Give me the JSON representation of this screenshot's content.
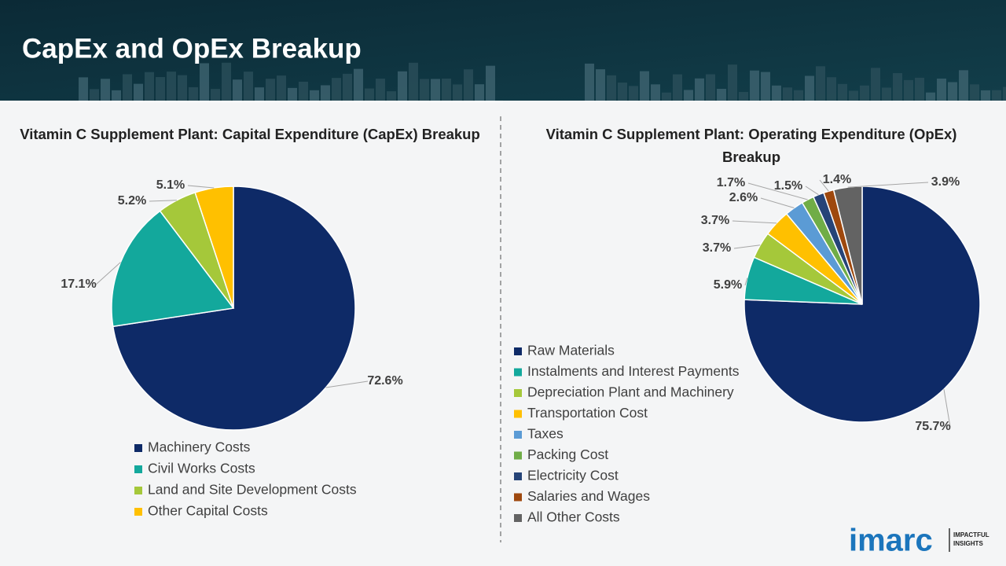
{
  "title": "CapEx and OpEx Breakup",
  "chart_data": [
    {
      "type": "pie",
      "title": "Vitamin C Supplement Plant: Capital Expenditure (CapEx) Breakup",
      "categories": [
        "Machinery Costs",
        "Civil Works Costs",
        "Land and Site Development Costs",
        "Other Capital Costs"
      ],
      "values": [
        72.6,
        17.1,
        5.2,
        5.1
      ],
      "value_labels": [
        "72.6%",
        "17.1%",
        "5.2%",
        "5.1%"
      ],
      "colors": [
        "#0e2a67",
        "#13a89c",
        "#a5c83a",
        "#ffc000"
      ]
    },
    {
      "type": "pie",
      "title": "Vitamin C Supplement Plant: Operating Expenditure (OpEx) Breakup",
      "categories": [
        "Raw Materials",
        "Instalments and Interest Payments",
        "Depreciation Plant and Machinery",
        "Transportation Cost",
        "Taxes",
        "Packing Cost",
        "Electricity Cost",
        "Salaries and Wages",
        "All Other Costs"
      ],
      "values": [
        75.7,
        5.9,
        3.7,
        3.7,
        2.6,
        1.7,
        1.5,
        1.4,
        3.9
      ],
      "value_labels": [
        "75.7%",
        "5.9%",
        "3.7%",
        "3.7%",
        "2.6%",
        "1.7%",
        "1.5%",
        "1.4%",
        "3.9%"
      ],
      "colors": [
        "#0e2a67",
        "#13a89c",
        "#a5c83a",
        "#ffc000",
        "#5b9bd5",
        "#70ad47",
        "#264478",
        "#9e480e",
        "#636363"
      ]
    }
  ],
  "logo": {
    "brand": "imarc",
    "tagline": [
      "IMPACTFUL",
      "INSIGHTS"
    ]
  }
}
